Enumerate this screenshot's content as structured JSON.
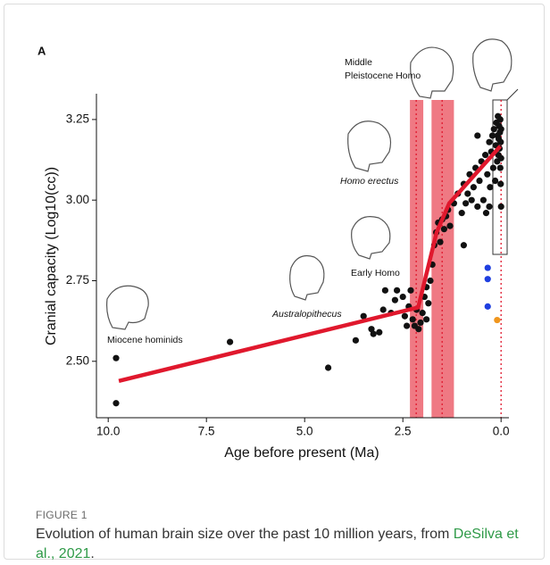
{
  "figure": {
    "panel": "A",
    "label": "FIGURE 1",
    "caption": "Evolution of human brain size over the past 10 million years, from ",
    "citation": "DeSilva et al., 2021",
    "caption_end": "."
  },
  "chart_data": {
    "type": "scatter",
    "xlabel": "Age before present (Ma)",
    "ylabel": "Cranial capacity (Log10(cc))",
    "xlim": [
      10.3,
      -0.2
    ],
    "ylim": [
      2.325,
      3.33
    ],
    "xticks": [
      {
        "value": 10,
        "label": "10.0"
      },
      7.5,
      {
        "value": 5,
        "label": "5.0"
      },
      2.5,
      {
        "value": 0,
        "label": "0.0"
      }
    ],
    "yticks": [
      {
        "value": 2.5,
        "label": "2.50"
      },
      2.75,
      {
        "value": 3,
        "label": "3.00"
      },
      3.25
    ],
    "annotations": [
      "Miocene hominids",
      "Australopithecus",
      "Early Homo",
      "Homo erectus",
      "Middle",
      "Pleistocene Homo"
    ],
    "series": [
      {
        "color": "#111111",
        "x": [
          9.8,
          9.8,
          6.9,
          4.4,
          3.7,
          3.5,
          3.3,
          3.25,
          3.0,
          2.95,
          2.8,
          2.7,
          2.65,
          2.5,
          2.45,
          2.35,
          2.3,
          2.25,
          2.2,
          2.15,
          2.1,
          2.05,
          2.0,
          1.95,
          1.9,
          1.85,
          1.8,
          1.75,
          1.7,
          1.65,
          1.6,
          1.55,
          1.5,
          1.45,
          1.4,
          1.35,
          1.3,
          1.2,
          1.1,
          1.0,
          0.95,
          0.9,
          0.85,
          0.8,
          0.75,
          0.7,
          0.65,
          0.6,
          0.55,
          0.5,
          0.45,
          0.4,
          0.38,
          0.35,
          0.3,
          0.28,
          0.25,
          0.22,
          0.2,
          0.18,
          0.15,
          0.13,
          0.12,
          0.1,
          0.09,
          0.08,
          0.07,
          0.06,
          0.05,
          0.04,
          0.03,
          0.02,
          0.02,
          0.01,
          0.01,
          0.0,
          0.0,
          0.0,
          1.9,
          2.4,
          0.95,
          0.6,
          0.3,
          3.1
        ],
        "values": [
          2.51,
          2.37,
          2.56,
          2.48,
          2.565,
          2.64,
          2.6,
          2.585,
          2.66,
          2.72,
          2.65,
          2.69,
          2.72,
          2.7,
          2.64,
          2.67,
          2.72,
          2.63,
          2.61,
          2.66,
          2.6,
          2.62,
          2.65,
          2.7,
          2.73,
          2.68,
          2.75,
          2.8,
          2.86,
          2.9,
          2.93,
          2.87,
          2.94,
          2.91,
          2.95,
          2.97,
          2.92,
          2.99,
          3.02,
          2.96,
          3.05,
          2.99,
          3.02,
          3.08,
          3.0,
          3.04,
          3.1,
          2.98,
          3.06,
          3.12,
          3.0,
          3.14,
          2.96,
          3.08,
          3.18,
          3.04,
          3.15,
          3.2,
          3.1,
          3.22,
          3.06,
          3.17,
          3.24,
          3.12,
          3.2,
          3.26,
          3.14,
          3.19,
          3.23,
          3.16,
          3.21,
          3.1,
          3.25,
          3.18,
          3.05,
          3.22,
          3.13,
          2.98,
          2.63,
          2.61,
          2.86,
          3.2,
          2.98,
          2.59
        ]
      },
      {
        "color": "#1f3fe0",
        "x": [
          0.34,
          0.34,
          0.34
        ],
        "values": [
          2.79,
          2.755,
          2.67
        ]
      },
      {
        "color": "#f0961e",
        "x": [
          0.1
        ],
        "values": [
          2.628
        ]
      }
    ],
    "fit_line": {
      "color": "#e0182d",
      "x": [
        9.73,
        2.11,
        1.64,
        1.32,
        0.02
      ],
      "values": [
        2.439,
        2.667,
        2.9,
        2.99,
        3.167
      ]
    },
    "bands": {
      "color": "#e8404f",
      "x": [
        [
          2.32,
          1.98
        ],
        [
          1.77,
          1.2
        ]
      ]
    },
    "vlines": {
      "color": "#e0182d",
      "x": [
        2.16,
        1.5,
        0.0
      ]
    }
  }
}
